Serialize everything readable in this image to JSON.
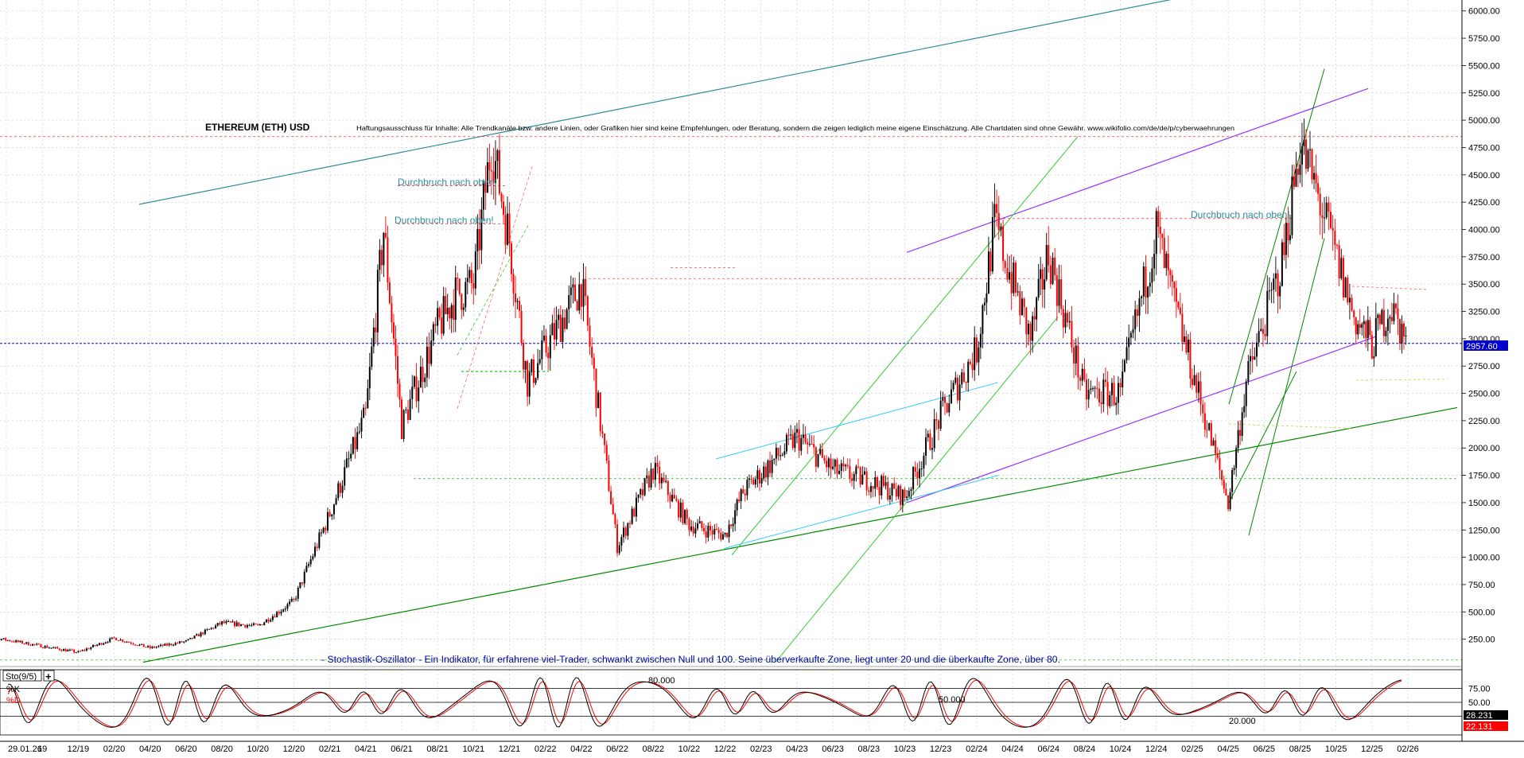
{
  "title": "ETHEREUM (ETH) USD",
  "disclaimer": "Haftungsausschluss für Inhalte: Alle Trendkanäle bzw. andere Linien, oder Grafiken hier sind keine Empfehlungen, oder Beratung, sondern die zeigen lediglich meine eigene Einschätzung. Alle Chartdaten sind ohne Gewähr.  www.wikifolio.com/de/de/p/cyberwaehrungen",
  "oscillator_note": "- Stochastik-Oszillator - Ein Indikator, für erfahrene viel-Trader, schwankt zwischen Null und 100. Seine überverkaufte Zone, liegt unter 20 und die überkaufte Zone, über 80.",
  "annotations": [
    "Durchbruch nach oben!",
    "Durchbruch nach oben!",
    "Durchbruch nach oben!"
  ],
  "colors": {
    "up_candle": "#000000",
    "down_candle": "#ff0000",
    "current_price": "#0000cc",
    "trend_blue": "#2e8b9a",
    "trend_purple": "#9933ff",
    "trend_green": "#008800",
    "trend_lime": "#33cc33",
    "trend_cyan": "#33ccff",
    "annotation": "#2e8b9a"
  },
  "chart_data": {
    "type": "candlestick",
    "title": "ETHEREUM (ETH) USD",
    "y_axis": {
      "position": "right",
      "ylim": [
        0,
        6100
      ],
      "ticks": [
        "250.00",
        "500.00",
        "750.00",
        "1000.00",
        "1250.00",
        "1500.00",
        "1750.00",
        "2000.00",
        "2250.00",
        "2500.00",
        "2750.00",
        "3000.00",
        "3250.00",
        "3500.00",
        "3750.00",
        "4000.00",
        "4250.00",
        "4500.00",
        "4750.00",
        "5000.00",
        "5250.00",
        "5500.00",
        "5750.00",
        "6000.00"
      ]
    },
    "x_axis": {
      "ticks": [
        "29.01.26",
        "19",
        "12/19",
        "02/20",
        "04/20",
        "06/20",
        "08/20",
        "10/20",
        "12/20",
        "02/21",
        "04/21",
        "06/21",
        "08/21",
        "10/21",
        "12/21",
        "02/22",
        "04/22",
        "06/22",
        "08/22",
        "10/22",
        "12/22",
        "02/23",
        "04/23",
        "06/23",
        "08/23",
        "10/23",
        "12/23",
        "02/24",
        "04/24",
        "06/24",
        "08/24",
        "10/24",
        "12/24",
        "02/25",
        "04/25",
        "06/25",
        "08/25",
        "10/25",
        "12/25",
        "02/26"
      ]
    },
    "current_price": 2957.6,
    "current_price_label": "2957.60",
    "price_path": [
      [
        "06/19",
        300
      ],
      [
        "12/19",
        130
      ],
      [
        "02/20",
        260
      ],
      [
        "04/20",
        170
      ],
      [
        "06/20",
        230
      ],
      [
        "08/20",
        400
      ],
      [
        "10/20",
        370
      ],
      [
        "12/20",
        600
      ],
      [
        "02/21",
        1400
      ],
      [
        "04/21",
        2300
      ],
      [
        "05/21",
        4000
      ],
      [
        "06/21",
        2200
      ],
      [
        "08/21",
        3100
      ],
      [
        "09/21",
        3400
      ],
      [
        "10/21",
        3500
      ],
      [
        "11/21",
        4800
      ],
      [
        "12/21",
        3900
      ],
      [
        "01/22",
        2600
      ],
      [
        "04/22",
        3500
      ],
      [
        "06/22",
        1100
      ],
      [
        "08/22",
        1800
      ],
      [
        "10/22",
        1300
      ],
      [
        "12/22",
        1200
      ],
      [
        "01/23",
        1600
      ],
      [
        "04/23",
        2100
      ],
      [
        "06/23",
        1800
      ],
      [
        "08/23",
        1700
      ],
      [
        "10/23",
        1550
      ],
      [
        "12/23",
        2300
      ],
      [
        "02/24",
        2900
      ],
      [
        "03/24",
        4050
      ],
      [
        "05/24",
        3000
      ],
      [
        "06/24",
        3800
      ],
      [
        "08/24",
        2500
      ],
      [
        "10/24",
        2500
      ],
      [
        "12/24",
        4000
      ],
      [
        "01/25",
        3300
      ],
      [
        "02/25",
        2700
      ],
      [
        "04/25",
        1500
      ],
      [
        "05/25",
        2600
      ],
      [
        "07/25",
        3700
      ],
      [
        "08/25",
        4800
      ],
      [
        "09/25",
        4300
      ],
      [
        "11/25",
        3200
      ],
      [
        "12/25",
        2950
      ],
      [
        "01/26",
        3300
      ],
      [
        "02/26",
        2957.6
      ]
    ],
    "stochastic": {
      "name": "Sto(9/5)",
      "series": [
        {
          "name": "%K",
          "last": "28.231"
        },
        {
          "name": "%D",
          "last": "22.131"
        }
      ],
      "ylim": [
        0,
        100
      ],
      "ticks": [
        "25.00",
        "50.00",
        "75.00"
      ],
      "levels": [
        {
          "value": 80,
          "label": "80.000"
        },
        {
          "value": 50,
          "label": "50.000"
        },
        {
          "value": 20,
          "label": "20.000"
        }
      ]
    }
  },
  "window": {
    "add_button_label": "+"
  }
}
